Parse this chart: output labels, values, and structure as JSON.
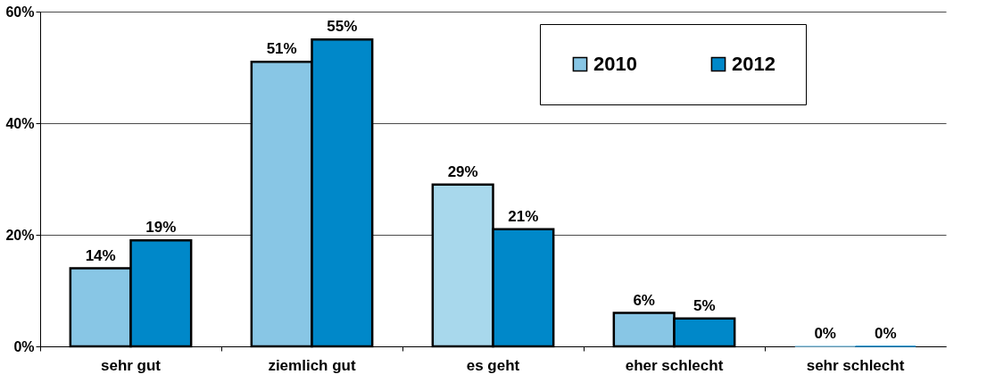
{
  "chart_data": {
    "type": "bar",
    "categories": [
      "sehr gut",
      "ziemlich gut",
      "es geht",
      "eher schlecht",
      "sehr schlecht"
    ],
    "series": [
      {
        "name": "2010",
        "color": "#88c6e5",
        "colors": [
          "#88c6e5",
          "#88c6e5",
          "#a8d8ec",
          "#88c6e5",
          "#88c6e5"
        ],
        "values": [
          14,
          51,
          29,
          6,
          0
        ],
        "value_labels": [
          "14%",
          "51%",
          "29%",
          "6%",
          "0%"
        ]
      },
      {
        "name": "2012",
        "color": "#0088c9",
        "values": [
          19,
          55,
          21,
          5,
          0
        ],
        "value_labels": [
          "19%",
          "55%",
          "21%",
          "5%",
          "0%"
        ]
      }
    ],
    "ylim": [
      0,
      60
    ],
    "yticks": [
      {
        "value": 0,
        "label": "0%"
      },
      {
        "value": 20,
        "label": "20%"
      },
      {
        "value": 40,
        "label": "40%"
      },
      {
        "value": 60,
        "label": "60%"
      }
    ],
    "grid": "y",
    "legend": "top right"
  }
}
